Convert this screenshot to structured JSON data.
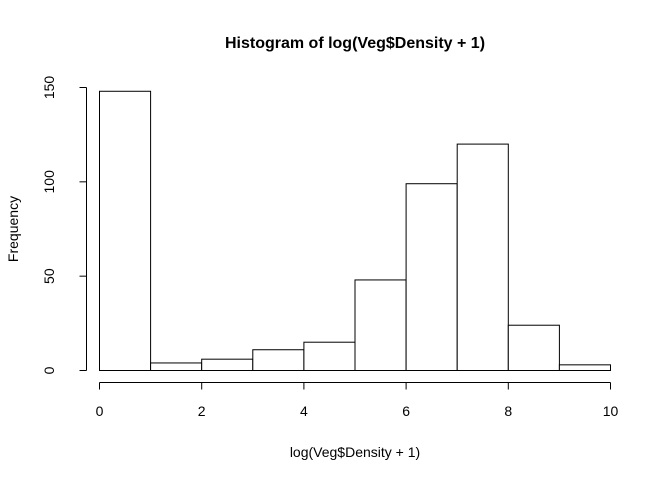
{
  "chart_data": {
    "type": "bar",
    "title": "Histogram of log(Veg$Density + 1)",
    "xlabel": "log(Veg$Density + 1)",
    "ylabel": "Frequency",
    "xlim": [
      0,
      10
    ],
    "ylim": [
      0,
      150
    ],
    "x_ticks": [
      0,
      2,
      4,
      6,
      8,
      10
    ],
    "y_ticks": [
      0,
      50,
      100,
      150
    ],
    "bins": [
      {
        "start": 0,
        "end": 1,
        "count": 148
      },
      {
        "start": 1,
        "end": 2,
        "count": 4
      },
      {
        "start": 2,
        "end": 3,
        "count": 6
      },
      {
        "start": 3,
        "end": 4,
        "count": 11
      },
      {
        "start": 4,
        "end": 5,
        "count": 15
      },
      {
        "start": 5,
        "end": 6,
        "count": 48
      },
      {
        "start": 6,
        "end": 7,
        "count": 99
      },
      {
        "start": 7,
        "end": 8,
        "count": 120
      },
      {
        "start": 8,
        "end": 9,
        "count": 24
      },
      {
        "start": 9,
        "end": 10,
        "count": 3
      }
    ],
    "grid": false,
    "legend": "none"
  }
}
